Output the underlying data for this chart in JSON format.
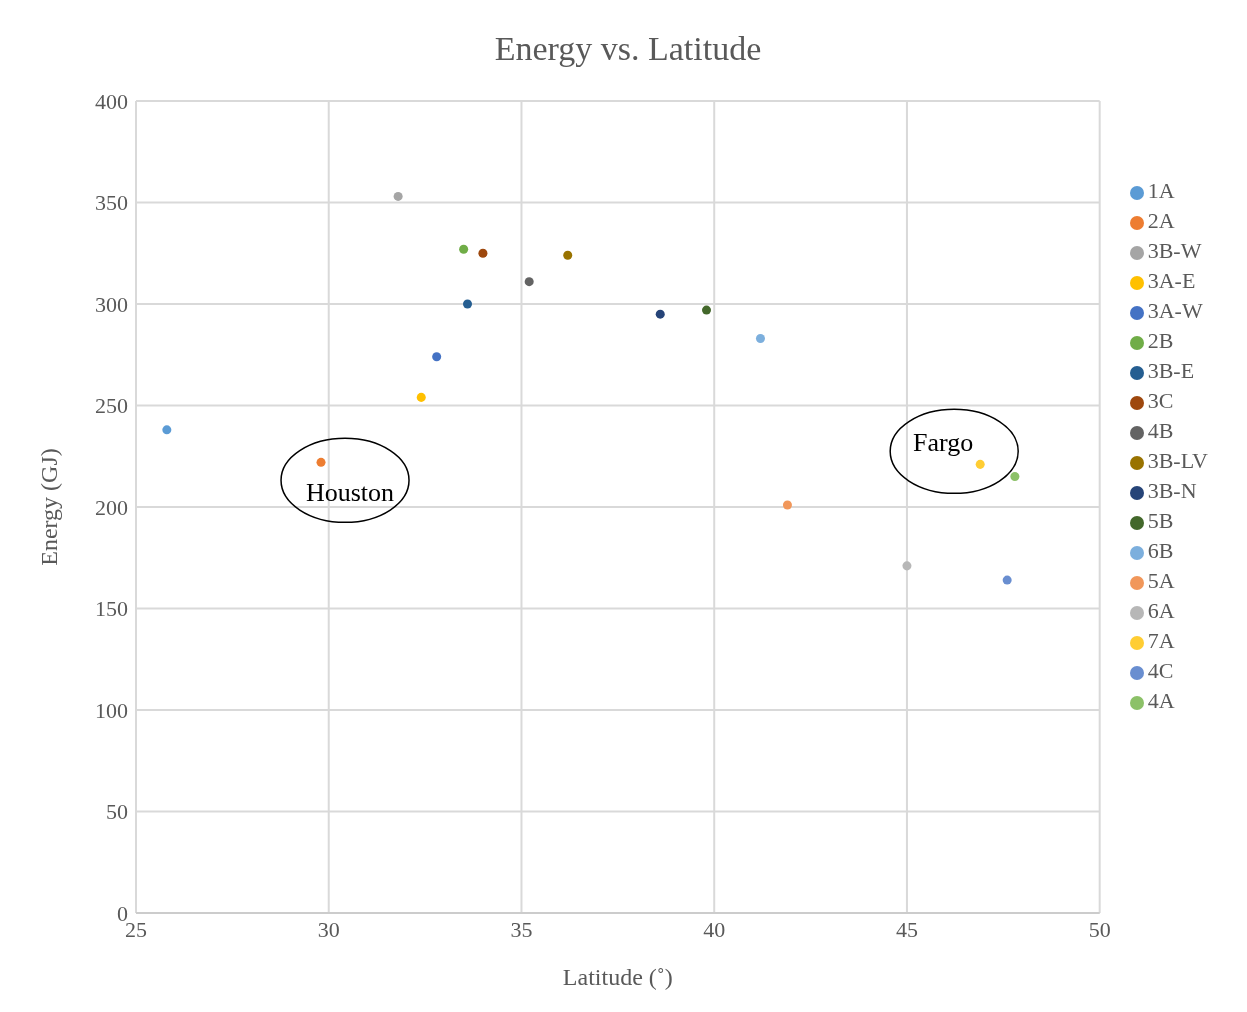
{
  "chart_data": {
    "type": "scatter",
    "title": "Energy vs. Latitude",
    "xlabel": "Latitude (˚)",
    "ylabel": "Energy (GJ)",
    "xlim": [
      25,
      50
    ],
    "xticks": [
      25,
      30,
      35,
      40,
      45,
      50
    ],
    "ylim": [
      0,
      400
    ],
    "yticks": [
      0,
      50,
      100,
      150,
      200,
      250,
      300,
      350,
      400
    ],
    "grid": true,
    "legend": "right",
    "marker": "circle",
    "annotations": [
      {
        "text": "Houston",
        "x": 29.8,
        "y": 222
      },
      {
        "text": "Fargo",
        "x": 46.9,
        "y": 221
      }
    ],
    "series": [
      {
        "name": "1A",
        "color": "#5b9bd5",
        "x": [
          25.8
        ],
        "values": [
          238
        ]
      },
      {
        "name": "2A",
        "color": "#ed7d31",
        "x": [
          29.8
        ],
        "values": [
          222
        ]
      },
      {
        "name": "3B-W",
        "color": "#a5a5a5",
        "x": [
          31.8
        ],
        "values": [
          353
        ]
      },
      {
        "name": "3A-E",
        "color": "#ffc000",
        "x": [
          32.4
        ],
        "values": [
          254
        ]
      },
      {
        "name": "3A-W",
        "color": "#4472c4",
        "x": [
          32.8
        ],
        "values": [
          274
        ]
      },
      {
        "name": "2B",
        "color": "#70ad47",
        "x": [
          33.5
        ],
        "values": [
          327
        ]
      },
      {
        "name": "3B-E",
        "color": "#255e91",
        "x": [
          33.6
        ],
        "values": [
          300
        ]
      },
      {
        "name": "3C",
        "color": "#9e480e",
        "x": [
          34.0
        ],
        "values": [
          325
        ]
      },
      {
        "name": "4B",
        "color": "#636363",
        "x": [
          35.2
        ],
        "values": [
          311
        ]
      },
      {
        "name": "3B-LV",
        "color": "#997300",
        "x": [
          36.2
        ],
        "values": [
          324
        ]
      },
      {
        "name": "3B-N",
        "color": "#264478",
        "x": [
          38.6
        ],
        "values": [
          295
        ]
      },
      {
        "name": "5B",
        "color": "#43682b",
        "x": [
          39.8
        ],
        "values": [
          297
        ]
      },
      {
        "name": "6B",
        "color": "#7cafdd",
        "x": [
          41.2
        ],
        "values": [
          283
        ]
      },
      {
        "name": "5A",
        "color": "#f1975a",
        "x": [
          41.9
        ],
        "values": [
          201
        ]
      },
      {
        "name": "6A",
        "color": "#b7b7b7",
        "x": [
          45.0
        ],
        "values": [
          171
        ]
      },
      {
        "name": "7A",
        "color": "#ffcd33",
        "x": [
          46.9
        ],
        "values": [
          221
        ]
      },
      {
        "name": "4C",
        "color": "#698ed0",
        "x": [
          47.6
        ],
        "values": [
          164
        ]
      },
      {
        "name": "4A",
        "color": "#8cc168",
        "x": [
          47.8
        ],
        "values": [
          215
        ]
      }
    ]
  }
}
